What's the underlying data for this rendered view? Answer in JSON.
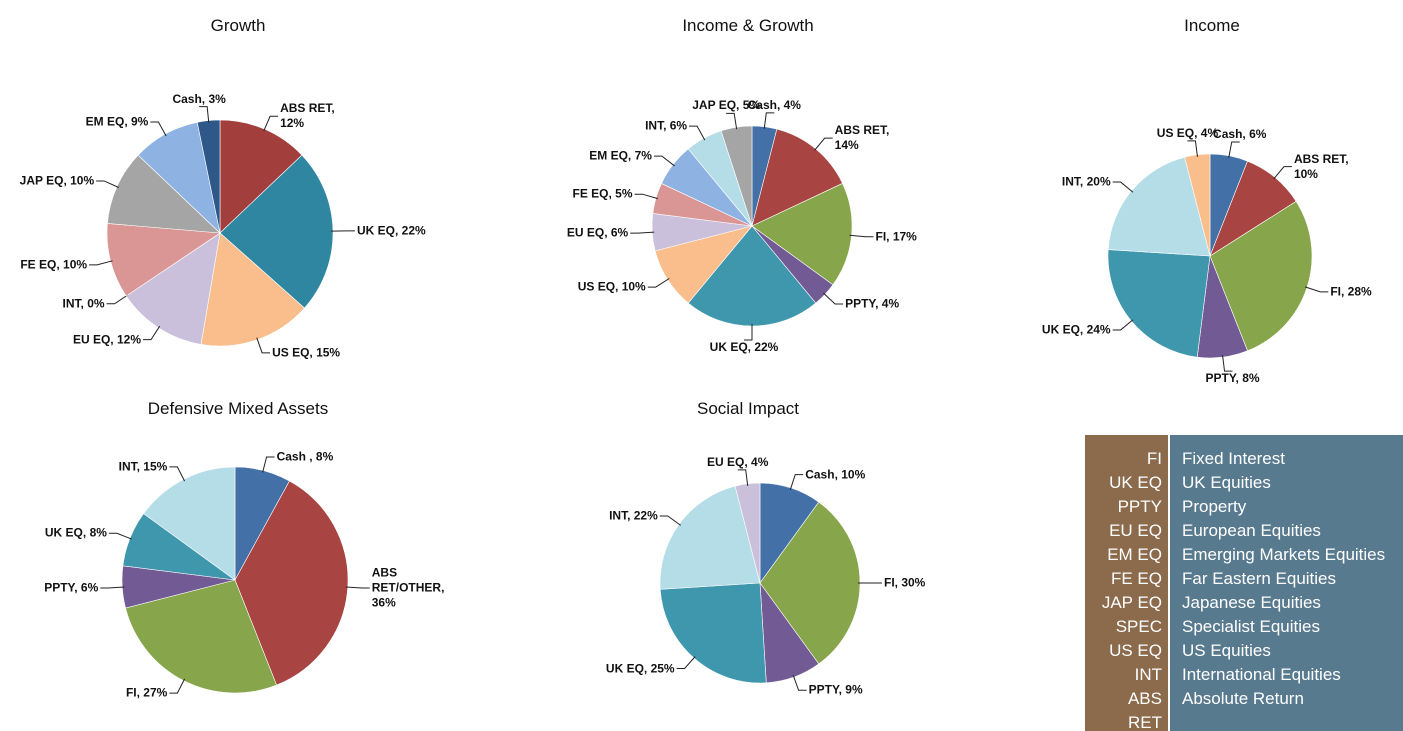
{
  "chart_data": [
    {
      "type": "pie",
      "title": "Growth",
      "values": [
        12,
        22,
        15,
        12,
        0,
        10,
        10,
        9,
        3
      ],
      "value_labels": [
        "ABS RET,\n12%",
        "UK EQ, 22%",
        "US EQ, 15%",
        "EU EQ, 12%",
        "INT, 0%",
        "FE EQ, 10%",
        "JAP EQ, 10%",
        "EM EQ, 9%",
        "Cash, 3%"
      ],
      "colors": [
        "#a23f3d",
        "#2f86a0",
        "#f9be8c",
        "#cbc0db",
        "#b5dde8",
        "#da9694",
        "#a5a5a5",
        "#8eb3e2",
        "#2e5888"
      ]
    },
    {
      "type": "pie",
      "title": "Income & Growth",
      "values": [
        4,
        14,
        17,
        4,
        22,
        10,
        6,
        5,
        7,
        6,
        5
      ],
      "value_labels": [
        "Cash, 4%",
        "ABS RET,\n14%",
        "FI, 17%",
        "PPTY, 4%",
        "UK EQ, 22%",
        "US EQ, 10%",
        "EU EQ, 6%",
        "FE EQ, 5%",
        "EM EQ, 7%",
        "INT, 6%",
        "JAP EQ, 5%"
      ],
      "colors": [
        "#4470a8",
        "#a84442",
        "#87a64b",
        "#725a94",
        "#3f97ae",
        "#f9be8c",
        "#cbc0db",
        "#da9694",
        "#8eb3e2",
        "#b5dde8",
        "#a5a5a5"
      ]
    },
    {
      "type": "pie",
      "title": "Income",
      "values": [
        6,
        10,
        28,
        8,
        24,
        20,
        4
      ],
      "value_labels": [
        "Cash, 6%",
        "ABS RET,\n10%",
        "FI, 28%",
        "PPTY, 8%",
        "UK EQ, 24%",
        "INT, 20%",
        "US EQ, 4%"
      ],
      "colors": [
        "#4470a8",
        "#a84442",
        "#87a64b",
        "#725a94",
        "#3f97ae",
        "#b5dde8",
        "#f9be8c"
      ]
    },
    {
      "type": "pie",
      "title": "Defensive Mixed Assets",
      "values": [
        8,
        36,
        27,
        6,
        8,
        15
      ],
      "value_labels": [
        "Cash , 8%",
        "ABS\nRET/OTHER,\n36%",
        "FI, 27%",
        "PPTY, 6%",
        "UK EQ, 8%",
        "INT, 15%"
      ],
      "colors": [
        "#4470a8",
        "#a84442",
        "#87a64b",
        "#725a94",
        "#3f97ae",
        "#b5dde8"
      ]
    },
    {
      "type": "pie",
      "title": "Social Impact",
      "values": [
        10,
        30,
        9,
        25,
        22,
        4
      ],
      "value_labels": [
        "Cash, 10%",
        "FI, 30%",
        "PPTY, 9%",
        "UK EQ, 25%",
        "INT, 22%",
        "EU EQ, 4%"
      ],
      "colors": [
        "#4470a8",
        "#87a64b",
        "#725a94",
        "#3f97ae",
        "#b5dde8",
        "#cbc0db"
      ]
    }
  ],
  "glossary": {
    "rows": [
      [
        "FI",
        "Fixed Interest"
      ],
      [
        "UK EQ",
        "UK Equities"
      ],
      [
        "PPTY",
        "Property"
      ],
      [
        "EU EQ",
        "European Equities"
      ],
      [
        "EM EQ",
        "Emerging Markets Equities"
      ],
      [
        "FE EQ",
        "Far Eastern Equities"
      ],
      [
        "JAP EQ",
        "Japanese Equities"
      ],
      [
        "SPEC",
        "Specialist Equities"
      ],
      [
        "US EQ",
        "US Equities"
      ],
      [
        "INT",
        "International Equities"
      ],
      [
        "ABS RET",
        "Absolute Return"
      ]
    ]
  }
}
